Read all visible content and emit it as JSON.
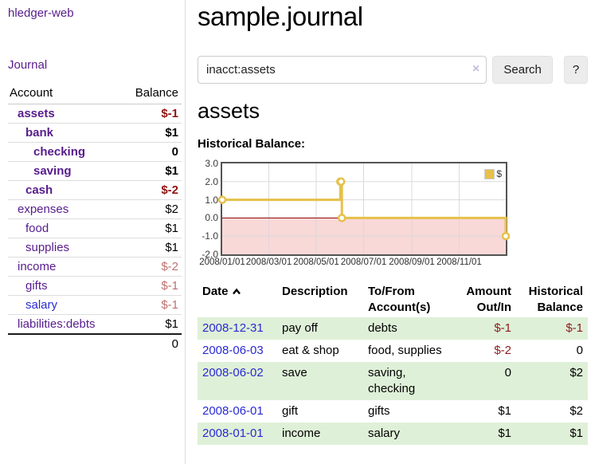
{
  "app": {
    "brand": "hledger-web"
  },
  "sidebar": {
    "nav": {
      "journal": "Journal"
    },
    "accounts_header": {
      "account": "Account",
      "balance": "Balance"
    },
    "accounts": [
      {
        "name": "assets",
        "balance": "$-1"
      },
      {
        "name": "bank",
        "balance": "$1"
      },
      {
        "name": "checking",
        "balance": "0"
      },
      {
        "name": "saving",
        "balance": "$1"
      },
      {
        "name": "cash",
        "balance": "$-2"
      },
      {
        "name": "expenses",
        "balance": "$2"
      },
      {
        "name": "food",
        "balance": "$1"
      },
      {
        "name": "supplies",
        "balance": "$1"
      },
      {
        "name": "income",
        "balance": "$-2"
      },
      {
        "name": "gifts",
        "balance": "$-1"
      },
      {
        "name": "salary",
        "balance": "$-1"
      },
      {
        "name": "liabilities:debts",
        "balance": "$1"
      }
    ],
    "total": "0"
  },
  "main": {
    "title": "sample.journal",
    "search": {
      "value": "inacct:assets",
      "clear_icon": "×",
      "button": "Search",
      "help": "?"
    },
    "account_title": "assets",
    "chart_title": "Historical Balance:"
  },
  "chart_data": {
    "type": "line",
    "step": true,
    "title": "Historical Balance:",
    "series": [
      {
        "name": "$",
        "points": [
          [
            "2008-01-01",
            1
          ],
          [
            "2008-06-01",
            2
          ],
          [
            "2008-06-02",
            2
          ],
          [
            "2008-06-03",
            0
          ],
          [
            "2008-12-31",
            -1
          ]
        ]
      }
    ],
    "x_range": [
      "2008-01-01",
      "2008-12-31"
    ],
    "ylim": [
      -2,
      3
    ],
    "y_ticks": [
      "3.0",
      "2.0",
      "1.0",
      "0.0",
      "-1.0",
      "-2.0"
    ],
    "x_ticks": [
      "2008/01/01",
      "2008/03/01",
      "2008/05/01",
      "2008/07/01",
      "2008/09/01",
      "2008/11/01"
    ],
    "legend": "$",
    "grid": true,
    "legend_position": "top-right",
    "colors": {
      "line": "#e6c14a",
      "negative_fill": "#f9d8d8",
      "zero_line": "#8b0000",
      "grid": "#d9d9d9"
    }
  },
  "register": {
    "headers": {
      "date": "Date",
      "description": "Description",
      "accounts": "To/From Account(s)",
      "amount": "Amount Out/In",
      "balance": "Historical Balance"
    },
    "rows": [
      {
        "date": "2008-12-31",
        "description": "pay off",
        "accounts": "debts",
        "amount": "$-1",
        "balance": "$-1"
      },
      {
        "date": "2008-06-03",
        "description": "eat & shop",
        "accounts": "food, supplies",
        "amount": "$-2",
        "balance": "0"
      },
      {
        "date": "2008-06-02",
        "description": "save",
        "accounts": "saving, checking",
        "amount": "0",
        "balance": "$2"
      },
      {
        "date": "2008-06-01",
        "description": "gift",
        "accounts": "gifts",
        "amount": "$1",
        "balance": "$2"
      },
      {
        "date": "2008-01-01",
        "description": "income",
        "accounts": "salary",
        "amount": "$1",
        "balance": "$1"
      }
    ]
  }
}
